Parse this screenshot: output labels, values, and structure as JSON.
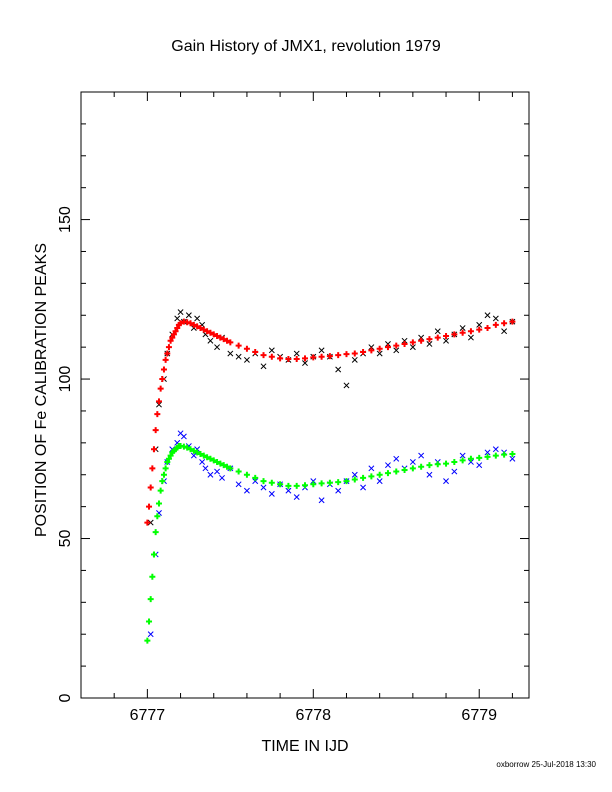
{
  "chart_data": {
    "type": "scatter",
    "title": "Gain History of JMX1, revolution 1979",
    "xlabel": "TIME IN IJD",
    "ylabel": "POSITION OF Fe CALIBRATION PEAKS",
    "xlim": [
      6776.6,
      6779.3
    ],
    "ylim": [
      0,
      190
    ],
    "x_ticks": [
      6777,
      6778,
      6779
    ],
    "y_ticks": [
      0,
      50,
      100,
      150
    ],
    "grid": false,
    "series": [
      {
        "color": "#000000",
        "marker": "x",
        "x": [
          6777.02,
          6777.05,
          6777.07,
          6777.1,
          6777.12,
          6777.15,
          6777.18,
          6777.2,
          6777.22,
          6777.25,
          6777.28,
          6777.3,
          6777.33,
          6777.35,
          6777.38,
          6777.42,
          6777.45,
          6777.5,
          6777.55,
          6777.6,
          6777.65,
          6777.7,
          6777.75,
          6777.8,
          6777.85,
          6777.9,
          6777.95,
          6778.0,
          6778.05,
          6778.1,
          6778.15,
          6778.2,
          6778.25,
          6778.3,
          6778.35,
          6778.4,
          6778.45,
          6778.5,
          6778.55,
          6778.6,
          6778.65,
          6778.7,
          6778.75,
          6778.8,
          6778.85,
          6778.9,
          6778.95,
          6779.0,
          6779.05,
          6779.1,
          6779.15,
          6779.2
        ],
        "y": [
          55,
          78,
          92,
          100,
          108,
          114,
          119,
          121,
          118,
          120,
          116,
          119,
          117,
          114,
          112,
          110,
          113,
          108,
          107,
          106,
          108,
          104,
          109,
          107,
          106,
          108,
          105,
          107,
          109,
          107,
          103,
          98,
          106,
          108,
          110,
          108,
          111,
          109,
          112,
          110,
          113,
          111,
          115,
          112,
          114,
          116,
          113,
          117,
          120,
          119,
          115,
          118
        ]
      },
      {
        "color": "#0000ff",
        "marker": "x",
        "x": [
          6777.02,
          6777.05,
          6777.07,
          6777.1,
          6777.12,
          6777.15,
          6777.18,
          6777.2,
          6777.22,
          6777.25,
          6777.28,
          6777.3,
          6777.33,
          6777.35,
          6777.38,
          6777.42,
          6777.45,
          6777.5,
          6777.55,
          6777.6,
          6777.65,
          6777.7,
          6777.75,
          6777.8,
          6777.85,
          6777.9,
          6777.95,
          6778.0,
          6778.05,
          6778.1,
          6778.15,
          6778.2,
          6778.25,
          6778.3,
          6778.35,
          6778.4,
          6778.45,
          6778.5,
          6778.55,
          6778.6,
          6778.65,
          6778.7,
          6778.75,
          6778.8,
          6778.85,
          6778.9,
          6778.95,
          6779.0,
          6779.05,
          6779.1,
          6779.15,
          6779.2
        ],
        "y": [
          20,
          45,
          58,
          68,
          74,
          78,
          80,
          83,
          82,
          79,
          76,
          78,
          74,
          72,
          70,
          71,
          69,
          72,
          67,
          65,
          68,
          66,
          64,
          67,
          65,
          63,
          66,
          68,
          62,
          67,
          65,
          68,
          70,
          66,
          72,
          68,
          73,
          75,
          72,
          74,
          76,
          70,
          74,
          68,
          71,
          76,
          74,
          73,
          77,
          78,
          77,
          75
        ]
      },
      {
        "color": "#ff0000",
        "marker": "+",
        "x": [
          6777.0,
          6777.01,
          6777.02,
          6777.03,
          6777.04,
          6777.05,
          6777.06,
          6777.07,
          6777.08,
          6777.09,
          6777.1,
          6777.11,
          6777.12,
          6777.13,
          6777.14,
          6777.15,
          6777.16,
          6777.17,
          6777.18,
          6777.19,
          6777.2,
          6777.22,
          6777.24,
          6777.26,
          6777.28,
          6777.3,
          6777.32,
          6777.34,
          6777.36,
          6777.38,
          6777.4,
          6777.42,
          6777.44,
          6777.46,
          6777.48,
          6777.5,
          6777.55,
          6777.6,
          6777.65,
          6777.7,
          6777.75,
          6777.8,
          6777.85,
          6777.9,
          6777.95,
          6778.0,
          6778.05,
          6778.1,
          6778.15,
          6778.2,
          6778.25,
          6778.3,
          6778.35,
          6778.4,
          6778.45,
          6778.5,
          6778.55,
          6778.6,
          6778.65,
          6778.7,
          6778.75,
          6778.8,
          6778.85,
          6778.9,
          6778.95,
          6779.0,
          6779.05,
          6779.1,
          6779.15,
          6779.2
        ],
        "y": [
          55,
          60,
          66,
          72,
          78,
          84,
          89,
          93,
          97,
          100,
          103,
          106,
          108,
          110,
          112,
          113,
          114,
          115,
          116,
          117,
          117.5,
          118,
          117.8,
          117.5,
          117,
          116.5,
          116,
          115.5,
          115,
          114.5,
          114,
          113.5,
          113,
          112.5,
          112,
          111.5,
          110.5,
          109.5,
          108.5,
          107.5,
          107,
          106.5,
          106.3,
          106.3,
          106.5,
          106.8,
          107,
          107.2,
          107.5,
          107.8,
          108,
          108.5,
          109,
          109.5,
          110,
          110.5,
          111,
          111.5,
          112,
          112.5,
          113,
          113.5,
          114,
          114.5,
          115,
          115.5,
          116,
          117,
          117.5,
          118
        ]
      },
      {
        "color": "#00ff00",
        "marker": "+",
        "x": [
          6777.0,
          6777.01,
          6777.02,
          6777.03,
          6777.04,
          6777.05,
          6777.06,
          6777.07,
          6777.08,
          6777.09,
          6777.1,
          6777.11,
          6777.12,
          6777.13,
          6777.14,
          6777.15,
          6777.16,
          6777.17,
          6777.18,
          6777.19,
          6777.2,
          6777.22,
          6777.24,
          6777.26,
          6777.28,
          6777.3,
          6777.32,
          6777.34,
          6777.36,
          6777.38,
          6777.4,
          6777.42,
          6777.44,
          6777.46,
          6777.48,
          6777.5,
          6777.55,
          6777.6,
          6777.65,
          6777.7,
          6777.75,
          6777.8,
          6777.85,
          6777.9,
          6777.95,
          6778.0,
          6778.05,
          6778.1,
          6778.15,
          6778.2,
          6778.25,
          6778.3,
          6778.35,
          6778.4,
          6778.45,
          6778.5,
          6778.55,
          6778.6,
          6778.65,
          6778.7,
          6778.75,
          6778.8,
          6778.85,
          6778.9,
          6778.95,
          6779.0,
          6779.05,
          6779.1,
          6779.15,
          6779.2
        ],
        "y": [
          18,
          24,
          31,
          38,
          45,
          52,
          57,
          61,
          65,
          68,
          70,
          72,
          74,
          75,
          76,
          77,
          77.5,
          78,
          78.5,
          79,
          79,
          78.8,
          78.5,
          78,
          77.5,
          77,
          76.5,
          76,
          75.5,
          75,
          74.5,
          74,
          73.5,
          73,
          72.5,
          72,
          71,
          70,
          69,
          68,
          67.5,
          67,
          66.5,
          66.5,
          66.7,
          67,
          67.3,
          67.5,
          67.7,
          68,
          68.5,
          69,
          69.5,
          70,
          70.5,
          71,
          71.5,
          72,
          72.5,
          73,
          73.3,
          73.5,
          74,
          74.5,
          75,
          75.3,
          75.6,
          76,
          76.3,
          76.5
        ]
      }
    ]
  },
  "footer": "oxborrow 25-Jul-2018 13:30"
}
